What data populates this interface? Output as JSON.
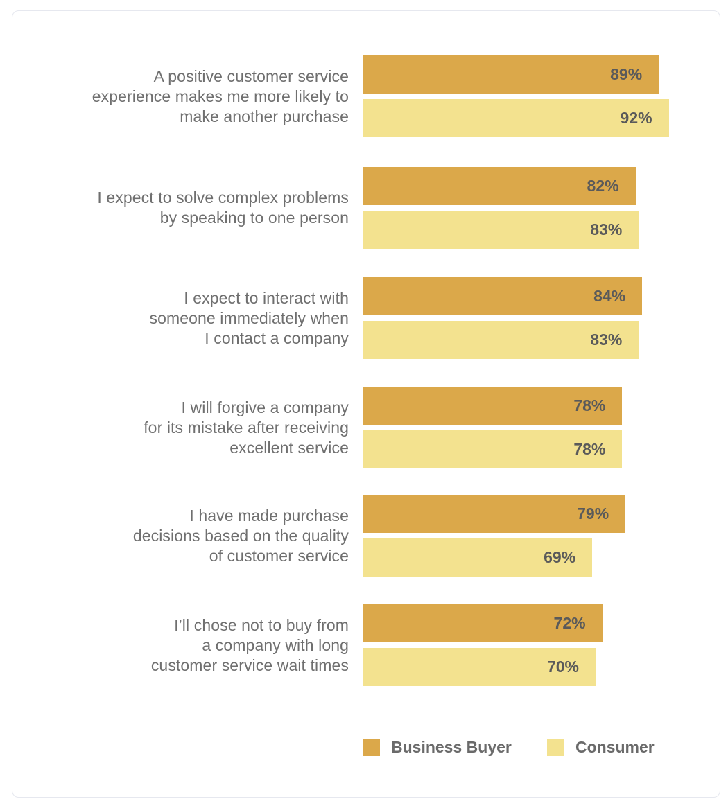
{
  "chart_data": {
    "type": "bar",
    "orientation": "horizontal",
    "categories": [
      "A positive customer service\nexperience makes me more likely to\nmake another purchase",
      "I expect to solve complex problems\nby speaking to one person",
      "I expect to interact with\nsomeone immediately when\nI contact a company",
      "I will forgive a company\nfor its mistake after receiving\nexcellent service",
      "I have made purchase\ndecisions based on the quality\nof customer service",
      "I’ll chose not to buy from\na company with long\ncustomer service wait times"
    ],
    "series": [
      {
        "name": "Business Buyer",
        "values": [
          89,
          82,
          84,
          78,
          79,
          72
        ],
        "labels": [
          "89%",
          "82%",
          "84%",
          "78%",
          "79%",
          "72%"
        ],
        "color": "#dba84a"
      },
      {
        "name": "Consumer",
        "values": [
          92,
          83,
          83,
          78,
          69,
          70
        ],
        "labels": [
          "92%",
          "83%",
          "83%",
          "78%",
          "69%",
          "70%"
        ],
        "color": "#f3e28f"
      }
    ],
    "xlim": [
      0,
      100
    ],
    "grid": false,
    "legend_placement": "bottom"
  },
  "legend": {
    "business_label": "Business Buyer",
    "consumer_label": "Consumer"
  },
  "colors": {
    "business": "#dba84a",
    "consumer": "#f3e28f",
    "label_text": "#6f6f6f",
    "value_text": "#5a5a5a"
  }
}
